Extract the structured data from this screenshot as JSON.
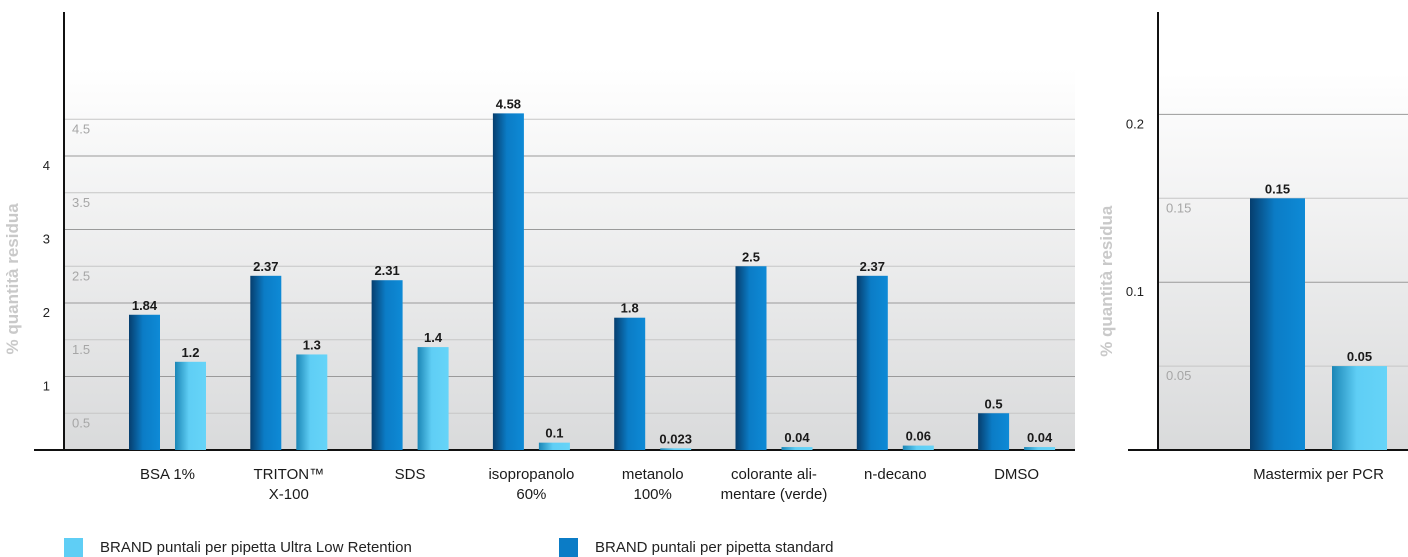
{
  "colors": {
    "standard": "#0b7cc6",
    "standard_dark": "#063e6e",
    "ultra_low": "#5fcef5",
    "ultra_low_dark": "#1b86b6"
  },
  "legend": {
    "ultra_low": "BRAND puntali per pipetta Ultra Low Retention",
    "standard": "BRAND puntali per pipetta standard"
  },
  "chart_data": [
    {
      "type": "bar",
      "ylabel": "% quantità residua",
      "ylim": [
        0,
        5.2
      ],
      "ticks_major": [
        "1",
        "2",
        "3",
        "4"
      ],
      "ticks_minor": [
        "0.5",
        "1.5",
        "2.5",
        "3.5",
        "4.5"
      ],
      "categories": [
        [
          "BSA 1%"
        ],
        [
          "TRITON™",
          "X-100"
        ],
        [
          "SDS"
        ],
        [
          "isopropanolo",
          "60%"
        ],
        [
          "metanolo",
          "100%"
        ],
        [
          "colorante ali-",
          "mentare (verde)"
        ],
        [
          "n-decano"
        ],
        [
          "DMSO"
        ]
      ],
      "series": [
        {
          "name": "BRAND puntali per pipetta standard",
          "key": "standard",
          "values": [
            1.84,
            2.37,
            2.31,
            4.58,
            1.8,
            2.5,
            2.37,
            0.5
          ],
          "labels": [
            "1.84",
            "2.37",
            "2.31",
            "4.58",
            "1.8",
            "2.5",
            "2.37",
            "0.5"
          ]
        },
        {
          "name": "BRAND puntali per pipetta Ultra Low Retention",
          "key": "ultra_low",
          "values": [
            1.2,
            1.3,
            1.4,
            0.1,
            0.023,
            0.04,
            0.06,
            0.04
          ],
          "labels": [
            "1.2",
            "1.3",
            "1.4",
            "0.1",
            "0.023",
            "0.04",
            "0.06",
            "0.04"
          ]
        }
      ]
    },
    {
      "type": "bar",
      "ylabel": "% quantità residua",
      "ylim": [
        0,
        0.225
      ],
      "ticks_major": [
        "0.1",
        "0.2"
      ],
      "ticks_minor": [
        "0.05",
        "0.15"
      ],
      "categories": [
        [
          "Mastermix per PCR"
        ]
      ],
      "series": [
        {
          "name": "BRAND puntali per pipetta standard",
          "key": "standard",
          "values": [
            0.15
          ],
          "labels": [
            "0.15"
          ]
        },
        {
          "name": "BRAND puntali per pipetta Ultra Low Retention",
          "key": "ultra_low",
          "values": [
            0.05
          ],
          "labels": [
            "0.05"
          ]
        }
      ]
    }
  ]
}
